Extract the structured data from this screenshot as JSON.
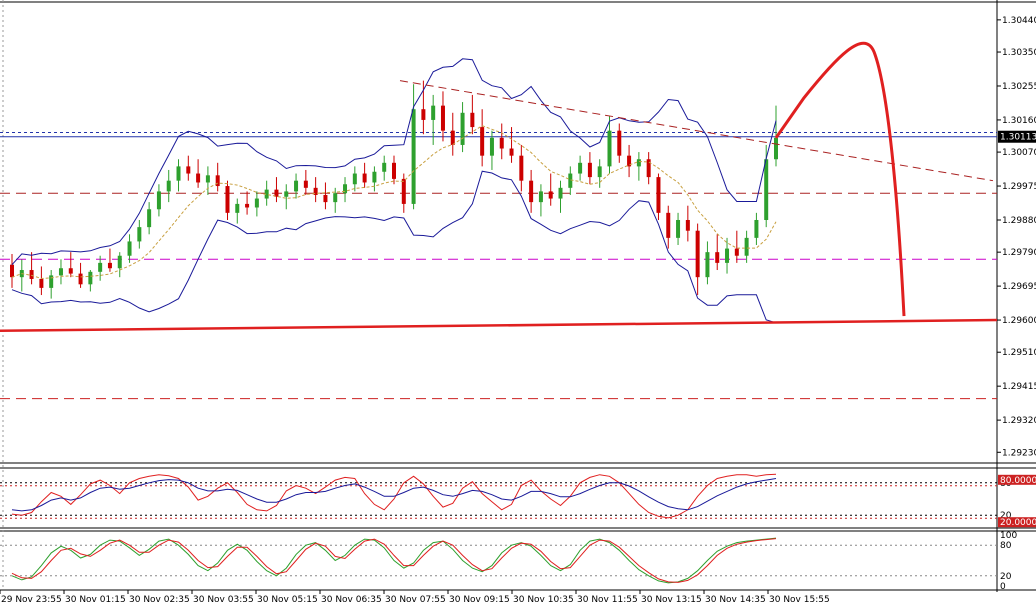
{
  "chart_data": [
    {
      "type": "candlestick",
      "panel": "price",
      "y_ticks": [
        "1.30440",
        "1.30350",
        "1.30255",
        "1.30160",
        "1.30070",
        "1.29975",
        "1.29880",
        "1.29790",
        "1.29695",
        "1.29600",
        "1.29510",
        "1.29415",
        "1.29320",
        "1.29230"
      ],
      "ylim": [
        1.292,
        1.3049
      ],
      "current_price_label": "1.30113",
      "current_price": 1.30113,
      "grid": false,
      "colors": {
        "bull": "#2ea02e",
        "bear": "#cc0000",
        "bands": "#1a1a99",
        "forecast": "#e02020",
        "support": "#e02020"
      },
      "horizontal_levels": [
        {
          "value": 1.30125,
          "style": "dotted",
          "color": "#2233aa"
        },
        {
          "value": 1.30113,
          "style": "solid",
          "color": "#2233aa"
        },
        {
          "value": 1.29955,
          "style": "dashed",
          "color": "#aa2222"
        },
        {
          "value": 1.2977,
          "style": "dashed",
          "color": "#cc00cc"
        },
        {
          "value": 1.2938,
          "style": "dashed",
          "color": "#cc2222"
        }
      ],
      "support_line": {
        "from": 1.2957,
        "to": 1.296
      },
      "trend_line": {
        "from": 1.3027,
        "to": 1.2999
      },
      "candles": [
        [
          1.29755,
          1.29785,
          1.2969,
          1.2972
        ],
        [
          1.2972,
          1.2977,
          1.2968,
          1.2974
        ],
        [
          1.2974,
          1.2979,
          1.297,
          1.29715
        ],
        [
          1.29715,
          1.2975,
          1.2967,
          1.2969
        ],
        [
          1.2969,
          1.2974,
          1.2966,
          1.29725
        ],
        [
          1.29725,
          1.2977,
          1.297,
          1.29745
        ],
        [
          1.29745,
          1.2979,
          1.2972,
          1.2973
        ],
        [
          1.2973,
          1.2976,
          1.2969,
          1.297
        ],
        [
          1.297,
          1.2974,
          1.2968,
          1.29735
        ],
        [
          1.29735,
          1.2978,
          1.2971,
          1.2976
        ],
        [
          1.2976,
          1.298,
          1.29735,
          1.29745
        ],
        [
          1.29745,
          1.2979,
          1.2972,
          1.2978
        ],
        [
          1.2978,
          1.2984,
          1.2976,
          1.2982
        ],
        [
          1.2982,
          1.2988,
          1.298,
          1.2986
        ],
        [
          1.2986,
          1.2993,
          1.2984,
          1.2991
        ],
        [
          1.2991,
          1.2998,
          1.2989,
          1.2996
        ],
        [
          1.2996,
          1.3002,
          1.2993,
          1.2999
        ],
        [
          1.2999,
          1.3005,
          1.2996,
          1.3003
        ],
        [
          1.3003,
          1.3006,
          1.2999,
          1.3001
        ],
        [
          1.3001,
          1.3005,
          1.2997,
          1.29985
        ],
        [
          1.29985,
          1.3003,
          1.2995,
          1.30005
        ],
        [
          1.30005,
          1.3004,
          1.2996,
          1.29975
        ],
        [
          1.29975,
          1.2999,
          1.2988,
          1.299
        ],
        [
          1.299,
          1.2994,
          1.2987,
          1.29925
        ],
        [
          1.29925,
          1.2996,
          1.29895,
          1.29915
        ],
        [
          1.29915,
          1.2996,
          1.2989,
          1.2994
        ],
        [
          1.2994,
          1.2999,
          1.2992,
          1.29965
        ],
        [
          1.29965,
          1.3,
          1.2993,
          1.29945
        ],
        [
          1.29945,
          1.2998,
          1.2991,
          1.2996
        ],
        [
          1.2996,
          1.3001,
          1.2994,
          1.2999
        ],
        [
          1.2999,
          1.3002,
          1.2995,
          1.2997
        ],
        [
          1.2997,
          1.3,
          1.2993,
          1.2995
        ],
        [
          1.2995,
          1.29985,
          1.2991,
          1.2993
        ],
        [
          1.2993,
          1.2997,
          1.299,
          1.29955
        ],
        [
          1.29955,
          1.3,
          1.2993,
          1.2998
        ],
        [
          1.2998,
          1.3003,
          1.2996,
          1.3001
        ],
        [
          1.3001,
          1.3004,
          1.2997,
          1.29985
        ],
        [
          1.29985,
          1.3003,
          1.2996,
          1.30015
        ],
        [
          1.30015,
          1.3006,
          1.2999,
          1.3004
        ],
        [
          1.3004,
          1.3006,
          1.2998,
          1.29995
        ],
        [
          1.29995,
          1.3001,
          1.299,
          1.29925
        ],
        [
          1.29925,
          1.3026,
          1.2991,
          1.3019
        ],
        [
          1.3019,
          1.3027,
          1.3012,
          1.3016
        ],
        [
          1.3016,
          1.3023,
          1.3009,
          1.302
        ],
        [
          1.302,
          1.3024,
          1.301,
          1.3013
        ],
        [
          1.3013,
          1.3018,
          1.3006,
          1.3009
        ],
        [
          1.3009,
          1.3021,
          1.3007,
          1.3018
        ],
        [
          1.3018,
          1.3023,
          1.3012,
          1.3014
        ],
        [
          1.3014,
          1.3019,
          1.3003,
          1.3006
        ],
        [
          1.3006,
          1.3013,
          1.3002,
          1.3011
        ],
        [
          1.3011,
          1.3015,
          1.3005,
          1.3008
        ],
        [
          1.3008,
          1.3014,
          1.3004,
          1.3006
        ],
        [
          1.3006,
          1.3009,
          1.2996,
          1.2999
        ],
        [
          1.2999,
          1.3002,
          1.299,
          1.2993
        ],
        [
          1.2993,
          1.2998,
          1.2989,
          1.2996
        ],
        [
          1.2996,
          1.3001,
          1.2992,
          1.2994
        ],
        [
          1.2994,
          1.2999,
          1.299,
          1.2997
        ],
        [
          1.2997,
          1.3003,
          1.2995,
          1.3001
        ],
        [
          1.3001,
          1.3006,
          1.2999,
          1.3004
        ],
        [
          1.3004,
          1.3007,
          1.2998,
          1.3
        ],
        [
          1.3,
          1.3005,
          1.2997,
          1.3003
        ],
        [
          1.3003,
          1.3017,
          1.3001,
          1.3013
        ],
        [
          1.3013,
          1.3015,
          1.3004,
          1.3006
        ],
        [
          1.3006,
          1.3009,
          1.3,
          1.3003
        ],
        [
          1.3003,
          1.3007,
          1.2999,
          1.3005
        ],
        [
          1.3005,
          1.3007,
          1.2998,
          1.3
        ],
        [
          1.3,
          1.3001,
          1.2988,
          1.299
        ],
        [
          1.299,
          1.2992,
          1.298,
          1.2983
        ],
        [
          1.2983,
          1.299,
          1.2981,
          1.2988
        ],
        [
          1.2988,
          1.2992,
          1.2982,
          1.2985
        ],
        [
          1.2985,
          1.2987,
          1.2967,
          1.2972
        ],
        [
          1.2972,
          1.2982,
          1.297,
          1.2979
        ],
        [
          1.2979,
          1.2984,
          1.2974,
          1.2976
        ],
        [
          1.2976,
          1.2983,
          1.2973,
          1.298
        ],
        [
          1.298,
          1.2985,
          1.2976,
          1.2978
        ],
        [
          1.2978,
          1.2985,
          1.2976,
          1.2983
        ],
        [
          1.2983,
          1.299,
          1.2981,
          1.2988
        ],
        [
          1.2988,
          1.3009,
          1.2986,
          1.3005
        ],
        [
          1.3005,
          1.302,
          1.3003,
          1.3011
        ]
      ]
    },
    {
      "type": "line",
      "panel": "rsi",
      "ylim": [
        0,
        100
      ],
      "y_ticks": [
        "80",
        "20"
      ],
      "level_labels": [
        "80.0000",
        "20.0000"
      ],
      "colors": {
        "fast": "#e02020",
        "slow": "#1a1a99"
      },
      "series": [
        {
          "values": [
            22,
            20,
            25,
            45,
            62,
            55,
            40,
            58,
            78,
            85,
            75,
            60,
            80,
            88,
            92,
            95,
            93,
            88,
            72,
            48,
            55,
            70,
            80,
            62,
            40,
            30,
            28,
            38,
            65,
            75,
            70,
            60,
            72,
            85,
            90,
            88,
            60,
            40,
            30,
            50,
            80,
            92,
            78,
            55,
            35,
            42,
            70,
            82,
            60,
            45,
            30,
            40,
            75,
            85,
            65,
            50,
            38,
            55,
            80,
            90,
            95,
            92,
            80,
            60,
            40,
            25,
            18,
            15,
            20,
            30,
            55,
            75,
            88,
            92,
            95,
            95,
            92,
            95,
            96
          ]
        },
        {
          "values": [
            30,
            28,
            30,
            38,
            48,
            52,
            48,
            52,
            62,
            70,
            72,
            68,
            70,
            75,
            80,
            84,
            86,
            85,
            80,
            70,
            65,
            65,
            68,
            66,
            58,
            50,
            44,
            44,
            50,
            58,
            62,
            62,
            64,
            70,
            75,
            78,
            72,
            64,
            55,
            55,
            62,
            70,
            72,
            66,
            58,
            55,
            60,
            66,
            64,
            58,
            50,
            48,
            55,
            64,
            64,
            60,
            54,
            54,
            60,
            68,
            75,
            80,
            80,
            74,
            65,
            54,
            44,
            36,
            32,
            30,
            36,
            46,
            56,
            64,
            72,
            78,
            82,
            85,
            88
          ]
        }
      ]
    },
    {
      "type": "line",
      "panel": "stochastic",
      "ylim": [
        0,
        100
      ],
      "y_ticks": [
        "100",
        "80",
        "20",
        "0"
      ],
      "colors": {
        "main": "#2ea02e",
        "signal": "#e02020"
      },
      "series": [
        {
          "values": [
            20,
            12,
            18,
            40,
            65,
            78,
            70,
            55,
            62,
            80,
            90,
            88,
            75,
            60,
            72,
            88,
            92,
            80,
            62,
            40,
            30,
            45,
            70,
            82,
            70,
            48,
            30,
            20,
            35,
            62,
            80,
            85,
            70,
            50,
            60,
            80,
            92,
            90,
            75,
            50,
            35,
            45,
            70,
            85,
            88,
            72,
            50,
            35,
            28,
            40,
            65,
            80,
            85,
            78,
            60,
            40,
            30,
            42,
            70,
            88,
            92,
            85,
            70,
            50,
            32,
            20,
            10,
            6,
            8,
            15,
            30,
            50,
            68,
            78,
            85,
            88,
            90,
            92,
            94
          ]
        },
        {
          "values": [
            25,
            16,
            15,
            28,
            50,
            70,
            74,
            63,
            58,
            70,
            84,
            90,
            80,
            66,
            66,
            80,
            90,
            86,
            70,
            50,
            36,
            38,
            58,
            76,
            76,
            58,
            38,
            24,
            28,
            50,
            72,
            84,
            78,
            58,
            54,
            72,
            88,
            92,
            82,
            60,
            40,
            40,
            60,
            78,
            88,
            80,
            60,
            42,
            30,
            34,
            55,
            74,
            84,
            82,
            68,
            48,
            34,
            36,
            58,
            80,
            90,
            88,
            76,
            58,
            40,
            26,
            14,
            8,
            7,
            11,
            22,
            40,
            60,
            74,
            82,
            86,
            89,
            91,
            93
          ]
        }
      ]
    }
  ],
  "x_labels": [
    "29 Nov 23:55",
    "30 Nov 01:15",
    "30 Nov 02:35",
    "30 Nov 03:55",
    "30 Nov 05:15",
    "30 Nov 06:35",
    "30 Nov 07:55",
    "30 Nov 09:15",
    "30 Nov 10:35",
    "30 Nov 11:55",
    "30 Nov 13:15",
    "30 Nov 14:35",
    "30 Nov 15:55"
  ]
}
